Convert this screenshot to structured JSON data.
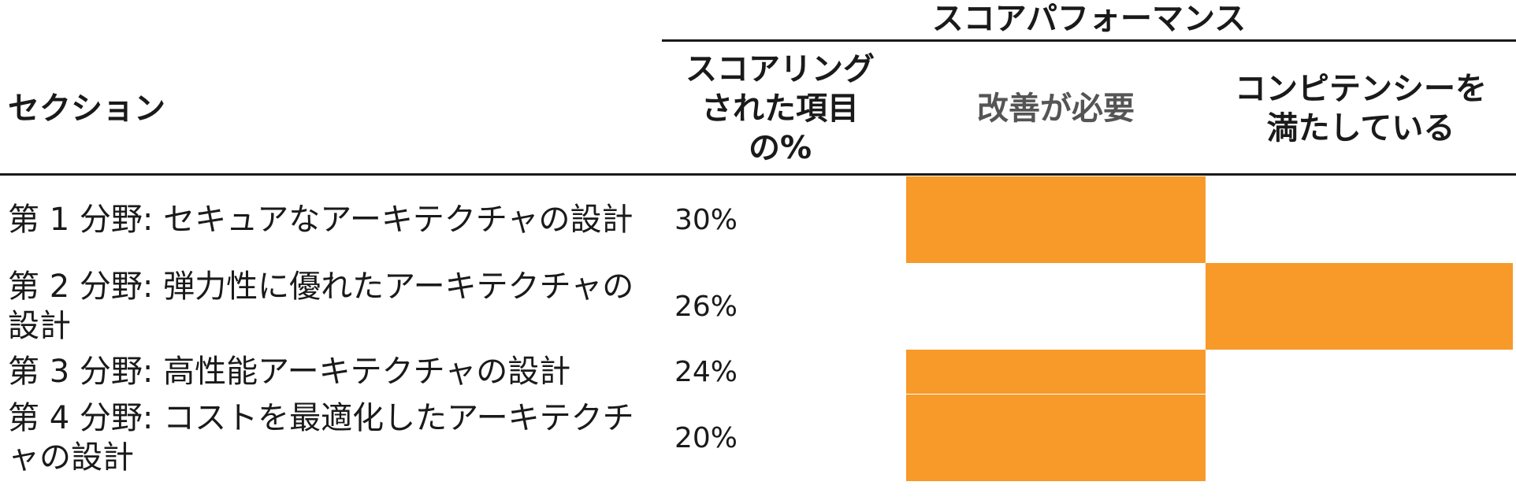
{
  "table": {
    "group_header": "スコアパフォーマンス",
    "headers": {
      "section": "セクション",
      "percent_scored": "スコアリングされた項目の%",
      "needs_improvement": "改善が必要",
      "meets_competency": "コンピテンシーを満たしている"
    },
    "rows": [
      {
        "section": "第 1 分野: セキュアなアーキテクチャの設計",
        "percent": "30%",
        "performance": "needs_improvement"
      },
      {
        "section": "第 2 分野: 弾力性に優れたアーキテクチャの設計",
        "percent": "26%",
        "performance": "meets_competency"
      },
      {
        "section": "第 3 分野: 高性能アーキテクチャの設計",
        "percent": "24%",
        "performance": "needs_improvement"
      },
      {
        "section": "第 4 分野: コストを最適化したアーキテクチャの設計",
        "percent": "20%",
        "performance": "needs_improvement"
      }
    ],
    "colors": {
      "bar": "#f79a2a",
      "rule": "#1a1a1a",
      "header_muted": "#555555"
    }
  }
}
